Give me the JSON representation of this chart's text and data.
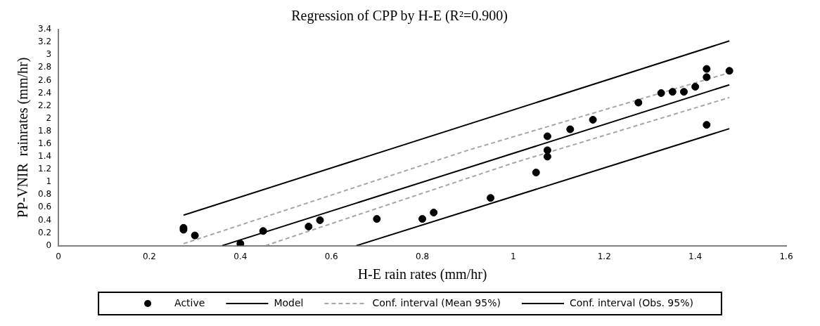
{
  "chart_data": {
    "type": "scatter",
    "title": "Regression of CPP by H-E (R²=0.900)",
    "xlabel": "H-E rain rates (mm/hr)",
    "ylabel": "PP-VNIR  rainrates (mm/hr)",
    "xlim": [
      0,
      1.6
    ],
    "xticks": [
      0,
      0.2,
      0.4,
      0.6,
      0.8,
      1,
      1.2,
      1.4,
      1.6
    ],
    "ylim": [
      0,
      3.4
    ],
    "yticks": [
      0,
      0.2,
      0.4,
      0.6,
      0.8,
      1,
      1.2,
      1.4,
      1.6,
      1.8,
      2,
      2.2,
      2.4,
      2.6,
      2.8,
      3,
      3.2,
      3.4
    ],
    "grid": false,
    "legend": "bottom",
    "series": [
      {
        "name": "Active",
        "type": "scatter",
        "marker": "circle",
        "color": "#000000",
        "x": [
          0.275,
          0.275,
          0.3,
          0.4,
          0.45,
          0.55,
          0.575,
          0.7,
          0.8,
          0.825,
          0.95,
          1.05,
          1.075,
          1.075,
          1.075,
          1.125,
          1.175,
          1.275,
          1.325,
          1.35,
          1.375,
          1.4,
          1.425,
          1.425,
          1.425,
          1.475
        ],
        "values": [
          0.28,
          0.25,
          0.16,
          0.03,
          0.23,
          0.3,
          0.4,
          0.42,
          0.42,
          0.52,
          0.75,
          1.15,
          1.72,
          1.5,
          1.4,
          1.83,
          1.98,
          2.25,
          2.4,
          2.42,
          2.42,
          2.5,
          2.78,
          2.65,
          1.9,
          2.75
        ]
      },
      {
        "name": "Model",
        "type": "line",
        "line_style": "solid",
        "color": "#000000",
        "x": [
          0.36,
          1.475
        ],
        "values": [
          0,
          2.53
        ]
      },
      {
        "name": "Conf. interval (Mean 95%)",
        "type": "line",
        "line_style": "dashed",
        "color": "#a6a6a6",
        "x": [
          0.275,
          0.9,
          1.475
        ],
        "values": [
          0.03,
          1.5,
          2.72
        ]
      },
      {
        "type": "line",
        "line_style": "dashed",
        "color": "#a6a6a6",
        "x": [
          0.455,
          1.0,
          1.475
        ],
        "values": [
          0,
          1.3,
          2.33
        ]
      },
      {
        "name": "Conf. interval (Obs. 95%)",
        "type": "line",
        "line_style": "solid",
        "color": "#000000",
        "x": [
          0.275,
          1.475
        ],
        "values": [
          0.48,
          3.22
        ]
      },
      {
        "type": "line",
        "line_style": "solid",
        "color": "#000000",
        "x": [
          0.655,
          1.475
        ],
        "values": [
          0,
          1.84
        ]
      }
    ]
  }
}
